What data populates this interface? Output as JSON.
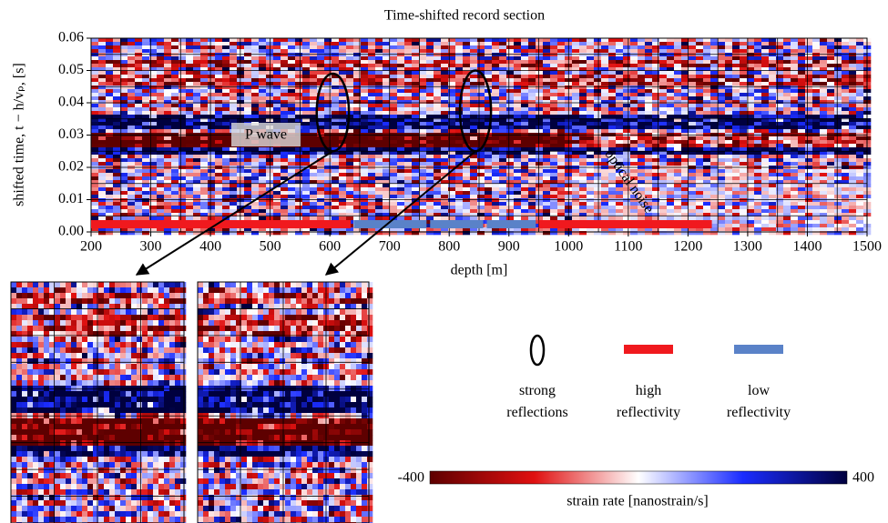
{
  "chart_data": {
    "type": "heatmap",
    "title": "Time-shifted record section",
    "xlabel": "depth [m]",
    "ylabel": "shifted time, t − h/vₚ, [s]",
    "xlim": [
      200,
      1500
    ],
    "ylim": [
      0,
      0.06
    ],
    "xticks": [
      200,
      300,
      400,
      500,
      600,
      700,
      800,
      900,
      1000,
      1100,
      1200,
      1300,
      1400,
      1500
    ],
    "yticks": [
      {
        "value": 0,
        "label": "0.00"
      },
      {
        "value": 0.01,
        "label": "0.01"
      },
      {
        "value": 0.02,
        "label": "0.02"
      },
      {
        "value": 0.03,
        "label": "0.03"
      },
      {
        "value": 0.04,
        "label": "0.04"
      },
      {
        "value": 0.05,
        "label": "0.05"
      },
      {
        "value": 0.06,
        "label": "0.06"
      }
    ],
    "grid": true,
    "annotations": [
      "P wave",
      "optical noise"
    ],
    "reflections": [
      {
        "x": [
          578,
          632
        ],
        "y": [
          0.025,
          0.049
        ]
      },
      {
        "x": [
          818,
          870
        ],
        "y": [
          0.025,
          0.05
        ]
      }
    ],
    "segments": [
      {
        "x": [
          200,
          635
        ],
        "color": "#f0191e"
      },
      {
        "x": [
          640,
          762
        ],
        "color": "#5a82c8"
      },
      {
        "x": [
          768,
          857
        ],
        "color": "#5a82c8"
      },
      {
        "x": [
          863,
          945
        ],
        "color": "#5a82c8"
      },
      {
        "x": [
          950,
          1240
        ],
        "color": "#f0191e"
      }
    ],
    "legend": [
      {
        "label": "strong reflections"
      },
      {
        "label": "high reflectivity",
        "color": "#f0191e"
      },
      {
        "label": "low reflectivity",
        "color": "#5a82c8"
      }
    ],
    "colorbar": {
      "label": "strain rate [nanostrain/s]",
      "clim": [
        -400,
        400
      ]
    }
  }
}
